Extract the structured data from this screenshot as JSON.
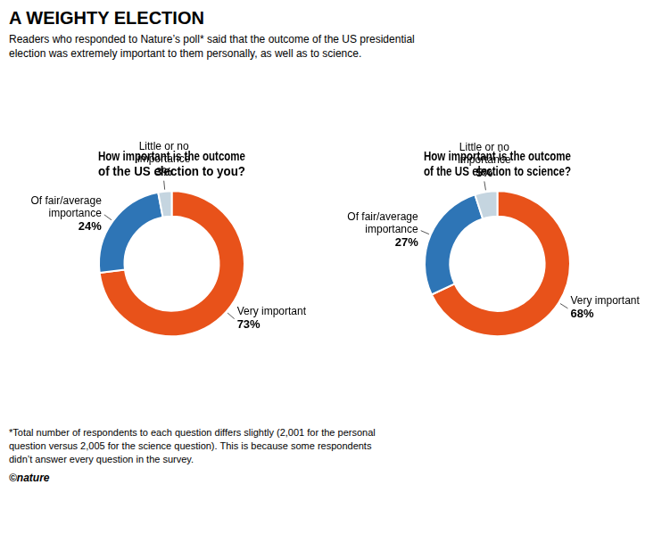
{
  "title": "A WEIGHTY ELECTION",
  "subtitle": "Readers who responded to Nature’s poll* said that the outcome of the US presidential\nelection was extremely important to them personally, as well as to science.",
  "annotations": [
    "*Total number of respondents to each question differs slightly (2,001 for the personal\nquestion versus 2,005 for the science question). This is because some respondents\ndidn’t answer every question in the survey.",
    "©nature"
  ],
  "chart_data": [
    {
      "type": "doughnut",
      "title": "How important is the outcome\nof the US election to you?",
      "categories": [
        "Very important",
        "Of fair/average importance",
        "Little or no importance"
      ],
      "values": [
        73,
        24,
        3
      ],
      "value_labels": [
        "73%",
        "24%",
        "3%"
      ],
      "colors": [
        "#E8521A",
        "#2E75B6",
        "#C5D5E0"
      ],
      "data_labels": true,
      "legend": false
    },
    {
      "type": "doughnut",
      "title": "How important is the outcome\nof the US election to science?",
      "categories": [
        "Very important",
        "Of fair/average importance",
        "Little or no importance"
      ],
      "values": [
        68,
        27,
        5
      ],
      "value_labels": [
        "68%",
        "27%",
        "5%"
      ],
      "colors": [
        "#E8521A",
        "#2E75B6",
        "#C5D5E0"
      ],
      "data_labels": true,
      "legend": false
    }
  ]
}
